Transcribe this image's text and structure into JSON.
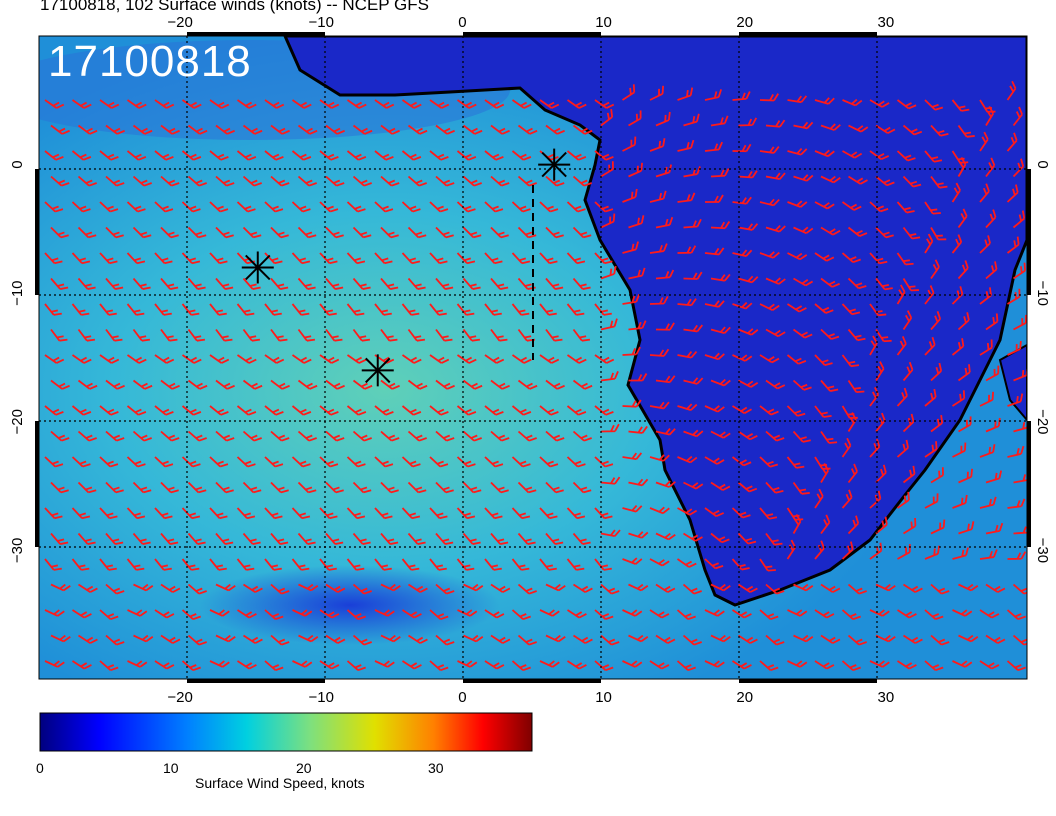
{
  "title": "17100818, 102 Surface winds (knots) -- NCEP GFS",
  "timestamp_label": "17100818",
  "map": {
    "lon_range": [
      -30,
      40
    ],
    "lat_range": [
      -40,
      10
    ],
    "lon_ticks": [
      "-20",
      "-10",
      "0",
      "10",
      "20",
      "30"
    ],
    "lat_ticks": [
      "0",
      "-10",
      "-20",
      "-30"
    ],
    "colors": {
      "land": "#1a28c8",
      "ocean": "#27a9d8",
      "barb": "#ff1a1a",
      "coast": "#000000"
    },
    "markers": [
      {
        "name": "storm-marker-1",
        "lon": 6.5,
        "lat": 0
      },
      {
        "name": "storm-marker-2",
        "lon": -14.5,
        "lat": -8
      },
      {
        "name": "storm-marker-3",
        "lon": -6,
        "lat": -16
      }
    ]
  },
  "colorbar": {
    "label": "Surface Wind Speed, knots",
    "ticks": [
      "0",
      "10",
      "20",
      "30"
    ],
    "range": [
      0,
      37
    ],
    "colors": [
      "#00007f",
      "#0000ff",
      "#0080ff",
      "#00d0e0",
      "#7ee07e",
      "#e0e000",
      "#ff8000",
      "#ff0000",
      "#7f0000"
    ]
  }
}
